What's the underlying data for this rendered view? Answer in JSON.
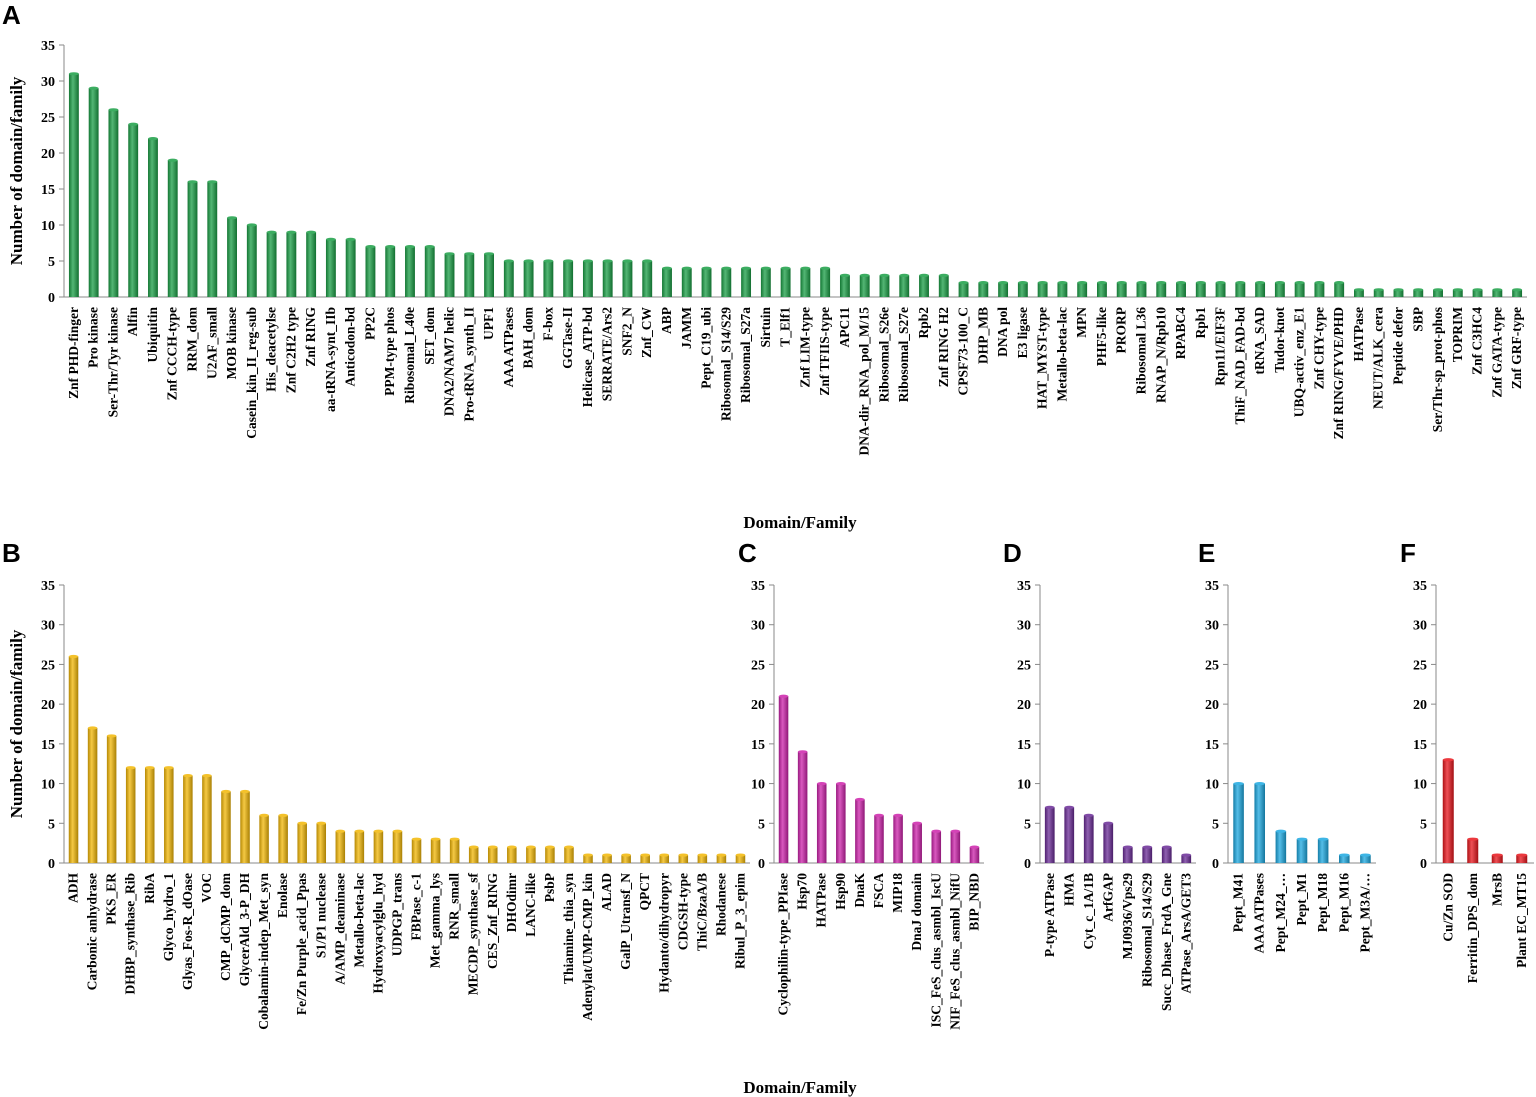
{
  "chart_data": [
    {
      "panel": "A",
      "type": "bar",
      "ylabel": "Number of domain/family",
      "xlabel": "Domain/Family",
      "ylim": [
        0,
        35
      ],
      "yticks": [
        0,
        5,
        10,
        15,
        20,
        25,
        30,
        35
      ],
      "grid": false,
      "color": "#1a9e45",
      "categories": [
        "Znf PHD-finger",
        "Pro kinase",
        "Ser-Thr/Tyr kinase",
        "Alfin",
        "Ubiquitin",
        "Znf CCCH-type",
        "RRM_dom",
        "U2AF_small",
        "MOB kinase",
        "Casein_kin_II_reg-sub",
        "His_deacetylse",
        "Znf C2H2 type",
        "Znf RING",
        "aa-tRNA-synt_IIb",
        "Anticodon-bd",
        "PP2C",
        "PPM-type phos",
        "Ribosomal_L40e",
        "SET_dom",
        "DNA2/NAM7 helic",
        "Pro-tRNA_synth_II",
        "UPF1",
        "AAA ATPases",
        "BAH_dom",
        "F-box",
        "GGTase-II",
        "Helicase_ATP-bd",
        "SERRATE/Ars2",
        "SNF2_N",
        "Znf_CW",
        "ABP",
        "JAMM",
        "Pept_C19_ubi",
        "Ribosomal_S14/S29",
        "Ribosomal_S27a",
        "Sirtuin",
        "T_Elf1",
        "Znf LIM-type",
        "Znf TFIIS-type",
        "APC11",
        "DNA-dir_RNA_pol_M/15",
        "Ribosomal_S26e",
        "Ribosomal_S27e",
        "Rpb2",
        "Znf RING H2",
        "CPSF73-100_C",
        "DHP_MB",
        "DNA pol",
        "E3 ligase",
        "HAT_MYST-type",
        "Metallo-beta-lac",
        "MPN",
        "PHF5-like",
        "PRORP",
        "Ribosomal L36",
        "RNAP_N/Rpb10",
        "RPABC4",
        "Rpb1",
        "Rpn11/EIF3F",
        "ThiF_NAD_FAD-bd",
        "tRNA_SAD",
        "Tudor-knot",
        "UBQ-activ_enz_E1",
        "Znf CHY-type",
        "Znf RING/FYVE/PHD",
        "HATPase",
        "NEUT/ALK_cera",
        "Peptide defor",
        "SBP",
        "Ser/Thr-sp_prot-phos",
        "TOPRIM",
        "Znf C3HC4",
        "Znf GATA-type",
        "Znf GRF-type"
      ],
      "values": [
        31,
        29,
        26,
        24,
        22,
        19,
        16,
        16,
        11,
        10,
        9,
        9,
        9,
        8,
        8,
        7,
        7,
        7,
        7,
        6,
        6,
        6,
        5,
        5,
        5,
        5,
        5,
        5,
        5,
        5,
        4,
        4,
        4,
        4,
        4,
        4,
        4,
        4,
        4,
        3,
        3,
        3,
        3,
        3,
        3,
        2,
        2,
        2,
        2,
        2,
        2,
        2,
        2,
        2,
        2,
        2,
        2,
        2,
        2,
        2,
        2,
        2,
        2,
        2,
        2,
        1,
        1,
        1,
        1,
        1,
        1,
        1,
        1,
        1
      ]
    },
    {
      "panel": "B",
      "type": "bar",
      "ylabel": "Number of domain/family",
      "xlabel": "Domain/Family",
      "ylim": [
        0,
        35
      ],
      "yticks": [
        0,
        5,
        10,
        15,
        20,
        25,
        30,
        35
      ],
      "grid": false,
      "color": "#f2b705",
      "categories": [
        "ADH",
        "Carbonic anhydrase",
        "PKS_ER",
        "DHBP_synthase_Rib",
        "RibA",
        "Glyco_hydro_1",
        "Glyas_Fos-R_dOase",
        "VOC",
        "CMP_dCMP_dom",
        "GlycerAld_3-P_DH",
        "Cobalamin-indep_Met_syn",
        "Enolase",
        "Fe/Zn Purple_acid_Ppas",
        "S1/P1 nuclease",
        "A/AMP_deaminase",
        "Metallo-beta-lac",
        "Hydroxyacylglu_hyd",
        "UDPGP_trans",
        "FBPase_c-1",
        "Met_gamma_lys",
        "RNR_small",
        "MECDP_synthase_sf",
        "CES_Znf_RING",
        "DHOdimr",
        "LANC-like",
        "PsbP",
        "Thiamine_thia_syn",
        "Adenylat/UMP-CMP_kin",
        "ALAD",
        "GalP_Utransf_N",
        "QPCT",
        "Hydanto/dihydropyr",
        "CDGSH-type",
        "ThiC/BzaA/B",
        "Rhodanese",
        "Ribul_P_3_epim"
      ],
      "values": [
        26,
        17,
        16,
        12,
        12,
        12,
        11,
        11,
        9,
        9,
        6,
        6,
        5,
        5,
        4,
        4,
        4,
        4,
        3,
        3,
        3,
        2,
        2,
        2,
        2,
        2,
        2,
        1,
        1,
        1,
        1,
        1,
        1,
        1,
        1,
        1
      ]
    },
    {
      "panel": "C",
      "type": "bar",
      "ylim": [
        0,
        35
      ],
      "yticks": [
        0,
        5,
        10,
        15,
        20,
        25,
        30,
        35
      ],
      "grid": false,
      "color": "#cc22aa",
      "categories": [
        "Cyclophilin-type_PPIase",
        "Hsp70",
        "HATPase",
        "Hsp90",
        "DnaK",
        "FSCA",
        "MIP18",
        "DnaJ domain",
        "ISC_FeS_clus_asmbl_IscU",
        "NIF_FeS_clus_asmbl_NifU",
        "BIP_NBD"
      ],
      "values": [
        21,
        14,
        10,
        10,
        8,
        6,
        6,
        5,
        4,
        4,
        2
      ]
    },
    {
      "panel": "D",
      "type": "bar",
      "ylim": [
        0,
        35
      ],
      "yticks": [
        0,
        5,
        10,
        15,
        20,
        25,
        30,
        35
      ],
      "grid": false,
      "color": "#6a2b96",
      "categories": [
        "P-type ATPase",
        "HMA",
        "Cyt_c_1A/1B",
        "ArfGAP",
        "MJ0936/Vps29",
        "Ribosomal_S14/S29",
        "Succ_Dhase_FrdA_Gne",
        "ATPase_ArsA/GET3"
      ],
      "values": [
        7,
        7,
        6,
        5,
        2,
        2,
        2,
        1
      ]
    },
    {
      "panel": "E",
      "type": "bar",
      "ylim": [
        0,
        35
      ],
      "yticks": [
        0,
        5,
        10,
        15,
        20,
        25,
        30,
        35
      ],
      "grid": false,
      "color": "#1ca8e0",
      "categories": [
        "Pept_M41",
        "AAA ATPases",
        "Pept_M24_…",
        "Pept_M1",
        "Pept_M18",
        "Pept_M16",
        "Pept_M3A/…"
      ],
      "values": [
        10,
        10,
        4,
        3,
        3,
        1,
        1
      ]
    },
    {
      "panel": "F",
      "type": "bar",
      "ylim": [
        0,
        35
      ],
      "yticks": [
        0,
        5,
        10,
        15,
        20,
        25,
        30,
        35
      ],
      "grid": false,
      "color": "#e8161c",
      "categories": [
        "Cu/Zn SOD",
        "Ferritin_DPS_dom",
        "MrsB",
        "Plant EC_MT15"
      ],
      "values": [
        13,
        3,
        1,
        1
      ]
    }
  ]
}
